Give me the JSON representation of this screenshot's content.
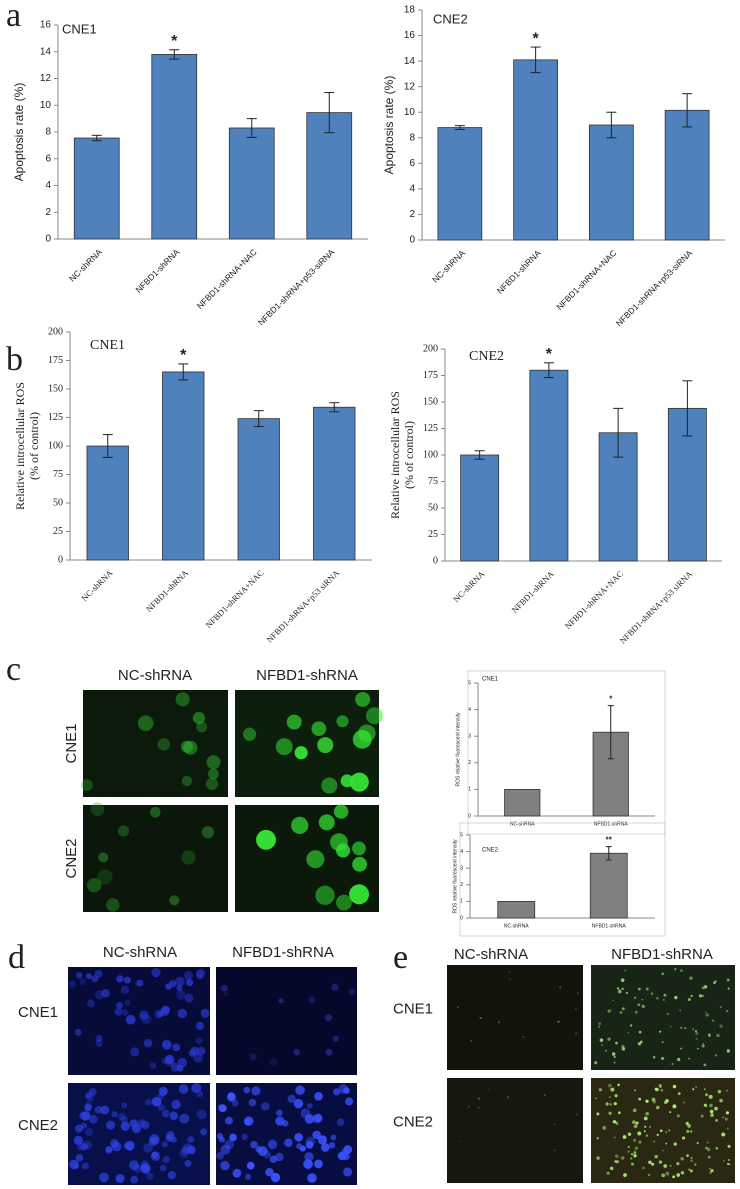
{
  "figure": {
    "panels": [
      "a",
      "b",
      "c",
      "d",
      "e"
    ]
  },
  "chart_data": [
    {
      "type": "bar",
      "title": "CNE1",
      "ylabel": [
        "Apoptosis rate (%)"
      ],
      "color": "#4f81bd",
      "categories": [
        "NC-shRNA",
        "NFBD1-shRNA",
        "NFBD1-shRNA+NAC",
        "NFBD1-shRNA+p53-siRNA"
      ],
      "values": [
        7.55,
        13.8,
        8.3,
        9.45
      ],
      "errors": [
        0.2,
        0.35,
        0.7,
        1.5
      ],
      "annotations": [
        null,
        "*",
        null,
        null
      ],
      "ylim": [
        0,
        16
      ],
      "yticks": [
        0,
        2,
        4,
        6,
        8,
        10,
        12,
        14,
        16
      ]
    },
    {
      "type": "bar",
      "title": "CNE2",
      "ylabel": [
        "Apoptosis rate (%)"
      ],
      "color": "#4f81bd",
      "categories": [
        "NC-shRNA",
        "NFBD1-shRNA",
        "NFBD1-shRNA+NAC",
        "NFBD1-shRNA+p53-siRNA"
      ],
      "values": [
        8.8,
        14.1,
        9.0,
        10.15
      ],
      "errors": [
        0.15,
        1.0,
        1.0,
        1.3
      ],
      "annotations": [
        null,
        "*",
        null,
        null
      ],
      "ylim": [
        0,
        18
      ],
      "yticks": [
        0,
        2,
        4,
        6,
        8,
        10,
        12,
        14,
        16,
        18
      ]
    },
    {
      "type": "bar",
      "title": "CNE1",
      "ylabel": [
        "Relative introcellular ROS",
        "(% of control)"
      ],
      "color": "#4f81bd",
      "categories": [
        "NC-shRNA",
        "NFBD1-shRNA",
        "NFBD1-shRNA+NAC",
        "NFBD1-shRNA+p53 siRNA"
      ],
      "values": [
        100,
        165,
        124,
        134
      ],
      "errors": [
        10,
        7,
        7,
        4
      ],
      "annotations": [
        null,
        "*",
        null,
        null
      ],
      "ylim": [
        0,
        200
      ],
      "yticks": [
        0,
        25,
        50,
        75,
        100,
        125,
        150,
        175,
        200
      ]
    },
    {
      "type": "bar",
      "title": "CNE2",
      "ylabel": [
        "Relative introcellular ROS",
        "(% of control)"
      ],
      "color": "#4f81bd",
      "categories": [
        "NC-shRNA",
        "NFBD1-shRNA",
        "NFBD1-shRNA+NAC",
        "NFBD1-shRNA+p53 siRNA"
      ],
      "values": [
        100,
        180,
        121,
        144
      ],
      "errors": [
        4,
        7,
        23,
        26
      ],
      "annotations": [
        null,
        "*",
        null,
        null
      ],
      "ylim": [
        0,
        200
      ],
      "yticks": [
        0,
        25,
        50,
        75,
        100,
        125,
        150,
        175,
        200
      ]
    },
    {
      "type": "bar",
      "title": "CNE1",
      "ylabel": [
        "ROS relative fluorescent intensity"
      ],
      "color": "#808080",
      "categories": [
        "NC-shRNA",
        "NFBD1-shRNA"
      ],
      "values": [
        1,
        3.15
      ],
      "errors": [
        0,
        1.0
      ],
      "annotations": [
        null,
        "*"
      ],
      "ylim": [
        0,
        5
      ],
      "yticks": [
        0,
        1,
        2,
        3,
        4,
        5
      ]
    },
    {
      "type": "bar",
      "title": "CNE2",
      "ylabel": [
        "ROS relative fluorescent intensity"
      ],
      "color": "#808080",
      "categories": [
        "NC-shRNA",
        "NFBD1-shRNA"
      ],
      "values": [
        1,
        3.9
      ],
      "errors": [
        0,
        0.4
      ],
      "annotations": [
        null,
        "**"
      ],
      "ylim": [
        0,
        5
      ],
      "yticks": [
        0,
        1,
        2,
        3,
        4,
        5
      ]
    }
  ],
  "images": {
    "c": {
      "columns": [
        "NC-shRNA",
        "NFBD1-shRNA"
      ],
      "rows": [
        "CNE1",
        "CNE2"
      ]
    },
    "d": {
      "columns": [
        "NC-shRNA",
        "NFBD1-shRNA"
      ],
      "rows": [
        "CNE1",
        "CNE2"
      ]
    },
    "e": {
      "columns": [
        "NC-shRNA",
        "NFBD1-shRNA"
      ],
      "rows": [
        "CNE1",
        "CNE2"
      ]
    }
  }
}
